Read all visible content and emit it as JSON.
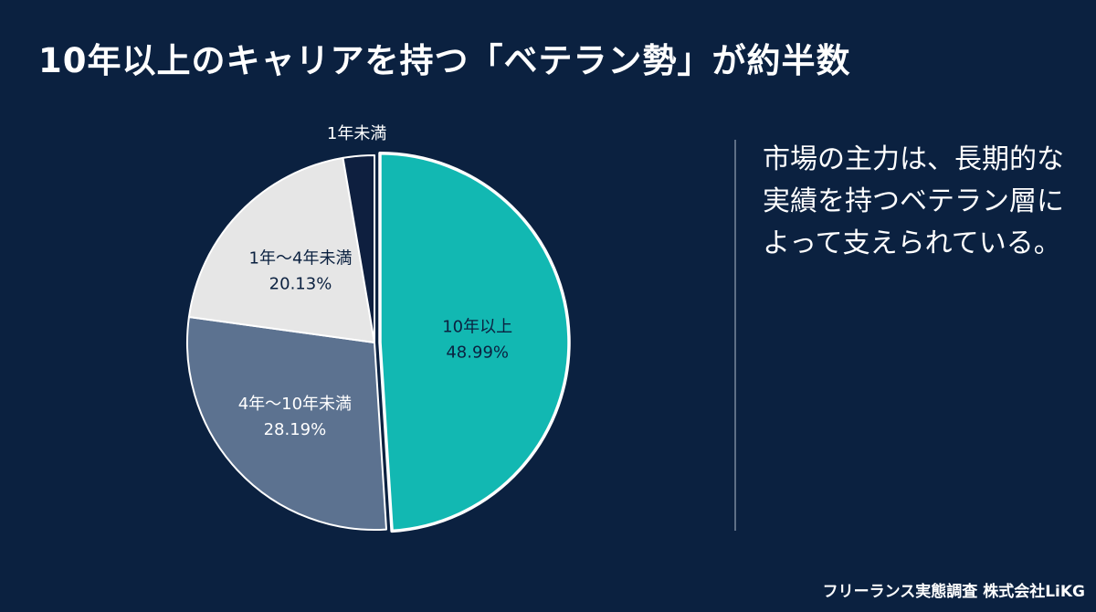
{
  "title": "10年以上のキャリアを持つ「ベテラン勢」が約半数",
  "caption": "市場の主力は、長期的な実績を持つベテラン層によって支えられている。",
  "footer": "フリーランス実態調査 株式会社LiKG",
  "chart_data": {
    "type": "pie",
    "title": "10年以上のキャリアを持つ「ベテラン勢」が約半数",
    "slices": [
      {
        "label": "10年以上",
        "value": 48.99,
        "value_label": "48.99%",
        "color": "#12b8b2",
        "label_color": "#0b2140"
      },
      {
        "label": "4年〜10年未満",
        "value": 28.19,
        "value_label": "28.19%",
        "color": "#5c7290",
        "label_color": "#ffffff"
      },
      {
        "label": "1年〜4年未満",
        "value": 20.13,
        "value_label": "20.13%",
        "color": "#e6e6e6",
        "label_color": "#0b2140"
      },
      {
        "label": "1年未満",
        "value": 2.69,
        "color": "#0e1f3f",
        "label_color": "#ffffff"
      }
    ]
  }
}
